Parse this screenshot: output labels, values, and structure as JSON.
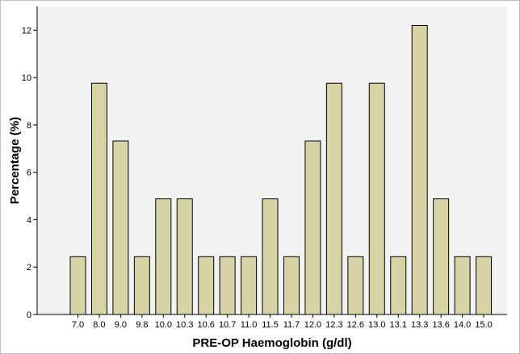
{
  "chart_data": {
    "type": "bar",
    "xlabel": "PRE-OP Haemoglobin (g/dl)",
    "ylabel": "Percentage (%)",
    "categories": [
      "7.0",
      "8.0",
      "9.0",
      "9.8",
      "10.0",
      "10.3",
      "10.6",
      "10.7",
      "11.0",
      "11.5",
      "11.7",
      "12.0",
      "12.3",
      "12.6",
      "13.0",
      "13.1",
      "13.3",
      "13.6",
      "14.0",
      "15.0"
    ],
    "values": [
      2.44,
      9.76,
      7.32,
      2.44,
      4.88,
      4.88,
      2.44,
      2.44,
      2.44,
      4.88,
      2.44,
      7.32,
      9.76,
      2.44,
      9.76,
      2.44,
      12.2,
      4.88,
      2.44,
      2.44
    ],
    "ylim": [
      0,
      13
    ],
    "yticks": [
      0,
      2,
      4,
      6,
      8,
      10,
      12
    ],
    "grid": false,
    "legend": "none",
    "colors": {
      "bar_fill": "#d6d3a4",
      "bar_stroke": "#000000",
      "plot_background": "#f2f2f2",
      "page_background": "#ffffff"
    }
  }
}
